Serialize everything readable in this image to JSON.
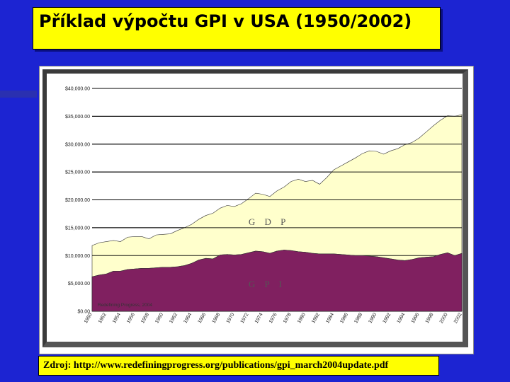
{
  "slide": {
    "title": "Příklad výpočtu GPI v USA (1950/2002)",
    "source": "Zdroj: http://www.redefiningprogress.org/publications/gpi_march2004update.pdf",
    "background_color": "#1c24d2",
    "box_color": "#ffff00"
  },
  "chart_data": {
    "type": "area",
    "x": [
      1950,
      1951,
      1952,
      1953,
      1954,
      1955,
      1956,
      1957,
      1958,
      1959,
      1960,
      1961,
      1962,
      1963,
      1964,
      1965,
      1966,
      1967,
      1968,
      1969,
      1970,
      1971,
      1972,
      1973,
      1974,
      1975,
      1976,
      1977,
      1978,
      1979,
      1980,
      1981,
      1982,
      1983,
      1984,
      1985,
      1986,
      1987,
      1988,
      1989,
      1990,
      1991,
      1992,
      1993,
      1994,
      1995,
      1996,
      1997,
      1998,
      1999,
      2000,
      2001,
      2002
    ],
    "x_tick_labels": [
      "1950",
      "1952",
      "1954",
      "1956",
      "1958",
      "1960",
      "1962",
      "1964",
      "1966",
      "1968",
      "1970",
      "1972",
      "1974",
      "1976",
      "1978",
      "1980",
      "1982",
      "1984",
      "1986",
      "1988",
      "1990",
      "1992",
      "1994",
      "1996",
      "1998",
      "2000",
      "2002"
    ],
    "y_tick_labels": [
      "$0.00",
      "$5,000.00",
      "$10,000.00",
      "$15,000.00",
      "$20,000.00",
      "$25,000.00",
      "$30,000.00",
      "$35,000.00",
      "$40,000.00"
    ],
    "ylim": [
      0,
      40000
    ],
    "series": [
      {
        "name": "GDP",
        "color": "#ffffcc",
        "values": [
          11800,
          12300,
          12500,
          12700,
          12500,
          13300,
          13400,
          13400,
          13000,
          13700,
          13800,
          13900,
          14500,
          15000,
          15600,
          16500,
          17200,
          17600,
          18500,
          19000,
          18800,
          19300,
          20200,
          21200,
          21000,
          20600,
          21600,
          22300,
          23300,
          23700,
          23300,
          23500,
          22800,
          24000,
          25400,
          26100,
          26800,
          27500,
          28300,
          28800,
          28700,
          28200,
          28800,
          29200,
          29900,
          30300,
          31100,
          32200,
          33300,
          34300,
          35100,
          35000,
          35300
        ]
      },
      {
        "name": "GPI",
        "color": "#802060",
        "values": [
          6200,
          6500,
          6700,
          7200,
          7200,
          7500,
          7600,
          7700,
          7700,
          7800,
          7900,
          7900,
          8000,
          8200,
          8600,
          9200,
          9500,
          9400,
          10100,
          10200,
          10100,
          10200,
          10500,
          10800,
          10700,
          10400,
          10800,
          11000,
          10900,
          10700,
          10600,
          10400,
          10300,
          10300,
          10300,
          10200,
          10100,
          10000,
          10000,
          9900,
          9800,
          9600,
          9400,
          9200,
          9100,
          9300,
          9600,
          9700,
          9800,
          10200,
          10500,
          10000,
          10400
        ]
      }
    ],
    "annotations": [
      "Redefining Progress, 2004"
    ],
    "grid": true
  }
}
